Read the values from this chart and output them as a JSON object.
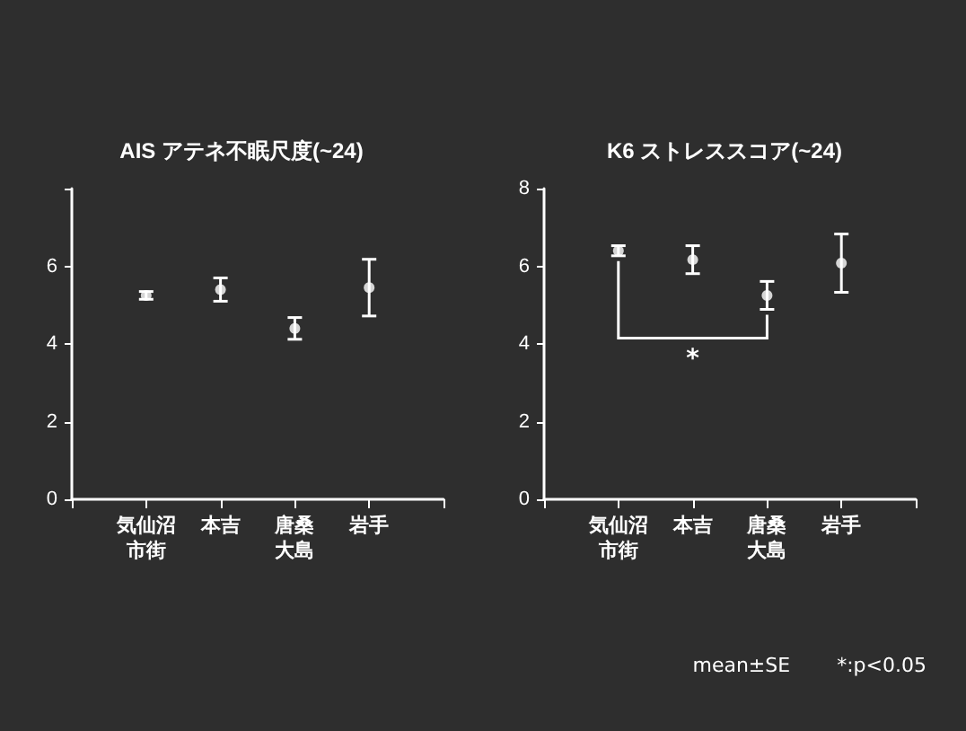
{
  "chart_data": [
    {
      "type": "scatter",
      "title": "AIS アテネ不眠尺度(~24)",
      "categories": [
        "気仙沼市街",
        "本吉",
        "唐桑大島",
        "岩手"
      ],
      "marker": "circle",
      "grid": false,
      "series": [
        {
          "color": "#ffffff",
          "values": [
            5.25,
            5.4,
            4.4,
            5.45
          ],
          "errors": [
            0.1,
            0.3,
            0.28,
            0.73
          ]
        }
      ],
      "ylim": [
        0,
        8
      ],
      "yticks": [
        0,
        2,
        4,
        6,
        {
          "value": 8,
          "label": null
        }
      ]
    },
    {
      "type": "scatter",
      "title": "K6 ストレススコア(~24)",
      "categories": [
        "気仙沼市街",
        "本吉",
        "唐桑大島",
        "岩手"
      ],
      "marker": "circle",
      "grid": false,
      "series": [
        {
          "color": "#ffffff",
          "values": [
            6.4,
            6.17,
            5.25,
            6.08
          ],
          "errors": [
            0.13,
            0.36,
            0.36,
            0.75
          ]
        }
      ],
      "ylim": [
        0,
        8
      ],
      "yticks": [
        0,
        2,
        4,
        6,
        8
      ],
      "annotations": [
        "*",
        "mean±SE",
        "*:p<0.05"
      ]
    }
  ]
}
